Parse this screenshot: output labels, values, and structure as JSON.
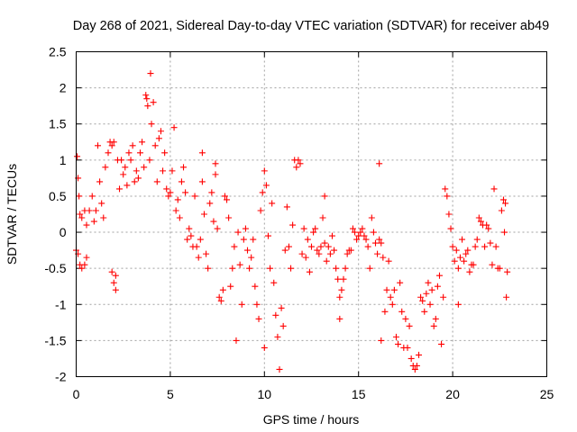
{
  "chart_data": {
    "type": "scatter",
    "title": "Day 268 of 2021, Sidereal Day-to-day VTEC variation (SDTVAR) for receiver ab49",
    "xlabel": "GPS time / hours",
    "ylabel": "SDTVAR / TECUs",
    "xlim": [
      0,
      25
    ],
    "ylim": [
      -2,
      2.5
    ],
    "xticks": [
      0,
      5,
      10,
      15,
      20,
      25
    ],
    "xtick_labels": [
      "0",
      "5",
      "10",
      "15",
      "20",
      "25"
    ],
    "yticks": [
      2.5,
      2,
      1.5,
      1,
      0.5,
      0,
      -0.5,
      -1,
      -1.5,
      -2
    ],
    "ytick_labels": [
      "2.5",
      "2",
      "1.5",
      "1",
      "0.5",
      "0",
      "-0.5",
      "-1",
      "-1.5",
      "-2"
    ],
    "grid": true,
    "marker": "+",
    "series": [
      {
        "name": "SDTVAR",
        "color": "#ff0000",
        "points": [
          [
            0.0,
            -0.25
          ],
          [
            0.05,
            1.05
          ],
          [
            0.1,
            0.75
          ],
          [
            0.15,
            0.5
          ],
          [
            0.2,
            0.25
          ],
          [
            0.1,
            -0.3
          ],
          [
            0.2,
            -0.45
          ],
          [
            0.3,
            -0.5
          ],
          [
            0.45,
            -0.45
          ],
          [
            0.55,
            -0.35
          ],
          [
            0.3,
            0.2
          ],
          [
            0.45,
            0.3
          ],
          [
            0.55,
            0.1
          ],
          [
            0.7,
            0.3
          ],
          [
            0.85,
            0.5
          ],
          [
            0.95,
            0.15
          ],
          [
            1.05,
            0.3
          ],
          [
            1.15,
            1.2
          ],
          [
            1.25,
            0.7
          ],
          [
            1.35,
            0.4
          ],
          [
            1.45,
            0.2
          ],
          [
            1.55,
            0.9
          ],
          [
            1.7,
            1.1
          ],
          [
            1.8,
            1.25
          ],
          [
            1.9,
            1.2
          ],
          [
            2.0,
            1.25
          ],
          [
            1.9,
            -0.55
          ],
          [
            2.0,
            -0.7
          ],
          [
            2.1,
            -0.6
          ],
          [
            2.1,
            -0.8
          ],
          [
            2.2,
            1.0
          ],
          [
            2.3,
            0.6
          ],
          [
            2.4,
            1.0
          ],
          [
            2.5,
            0.8
          ],
          [
            2.6,
            0.9
          ],
          [
            2.7,
            0.65
          ],
          [
            2.8,
            1.1
          ],
          [
            2.9,
            1.0
          ],
          [
            3.0,
            1.2
          ],
          [
            3.1,
            0.7
          ],
          [
            3.2,
            0.85
          ],
          [
            3.3,
            0.75
          ],
          [
            3.4,
            1.1
          ],
          [
            3.5,
            1.25
          ],
          [
            3.6,
            0.9
          ],
          [
            3.7,
            1.9
          ],
          [
            3.75,
            1.85
          ],
          [
            3.8,
            1.75
          ],
          [
            3.9,
            1.0
          ],
          [
            4.0,
            1.5
          ],
          [
            3.95,
            2.2
          ],
          [
            4.1,
            1.8
          ],
          [
            4.2,
            1.2
          ],
          [
            4.3,
            0.7
          ],
          [
            4.4,
            1.3
          ],
          [
            4.5,
            1.4
          ],
          [
            4.6,
            0.85
          ],
          [
            4.7,
            1.1
          ],
          [
            4.8,
            0.6
          ],
          [
            4.9,
            0.5
          ],
          [
            5.0,
            0.55
          ],
          [
            5.1,
            0.85
          ],
          [
            5.2,
            1.45
          ],
          [
            5.3,
            0.3
          ],
          [
            5.4,
            0.45
          ],
          [
            5.5,
            0.2
          ],
          [
            5.6,
            0.7
          ],
          [
            5.7,
            0.9
          ],
          [
            5.8,
            0.55
          ],
          [
            5.9,
            -0.1
          ],
          [
            6.0,
            0.05
          ],
          [
            6.1,
            -0.05
          ],
          [
            6.2,
            -0.2
          ],
          [
            6.3,
            0.5
          ],
          [
            6.4,
            -0.2
          ],
          [
            6.5,
            -0.35
          ],
          [
            6.6,
            -0.1
          ],
          [
            6.7,
            0.7
          ],
          [
            6.8,
            0.25
          ],
          [
            6.9,
            -0.3
          ],
          [
            7.0,
            -0.5
          ],
          [
            7.1,
            0.4
          ],
          [
            7.2,
            0.55
          ],
          [
            7.3,
            0.15
          ],
          [
            7.4,
            0.8
          ],
          [
            7.5,
            0.05
          ],
          [
            7.6,
            -0.9
          ],
          [
            7.7,
            -0.95
          ],
          [
            7.8,
            -0.8
          ],
          [
            7.9,
            0.5
          ],
          [
            8.0,
            0.45
          ],
          [
            8.1,
            0.2
          ],
          [
            8.2,
            -0.75
          ],
          [
            8.3,
            -0.5
          ],
          [
            8.4,
            -0.2
          ],
          [
            8.5,
            -1.5
          ],
          [
            8.6,
            0.0
          ],
          [
            8.7,
            -0.45
          ],
          [
            8.8,
            -1.0
          ],
          [
            8.9,
            -0.1
          ],
          [
            9.0,
            0.05
          ],
          [
            9.1,
            -0.25
          ],
          [
            9.2,
            -0.5
          ],
          [
            9.3,
            -0.35
          ],
          [
            9.4,
            -0.1
          ],
          [
            9.5,
            -0.75
          ],
          [
            9.6,
            -1.0
          ],
          [
            9.7,
            -1.2
          ],
          [
            9.8,
            0.3
          ],
          [
            9.9,
            0.55
          ],
          [
            10.0,
            0.85
          ],
          [
            10.1,
            0.65
          ],
          [
            10.2,
            -0.05
          ],
          [
            10.3,
            -0.5
          ],
          [
            10.4,
            0.4
          ],
          [
            10.5,
            -0.7
          ],
          [
            10.6,
            -1.15
          ],
          [
            10.7,
            -1.45
          ],
          [
            10.8,
            -1.9
          ],
          [
            10.9,
            -1.05
          ],
          [
            11.0,
            -1.3
          ],
          [
            11.1,
            -0.25
          ],
          [
            11.2,
            0.35
          ],
          [
            11.3,
            -0.2
          ],
          [
            11.4,
            -0.5
          ],
          [
            11.5,
            0.1
          ],
          [
            11.6,
            1.0
          ],
          [
            11.7,
            0.9
          ],
          [
            11.8,
            1.0
          ],
          [
            11.9,
            0.95
          ],
          [
            12.0,
            -0.3
          ],
          [
            12.1,
            0.05
          ],
          [
            12.2,
            -0.35
          ],
          [
            12.3,
            -0.1
          ],
          [
            12.4,
            -0.55
          ],
          [
            12.5,
            -0.2
          ],
          [
            12.6,
            0.0
          ],
          [
            12.7,
            0.05
          ],
          [
            12.8,
            -0.25
          ],
          [
            12.9,
            -0.3
          ],
          [
            13.0,
            -0.2
          ],
          [
            13.1,
            0.2
          ],
          [
            13.2,
            -0.15
          ],
          [
            13.3,
            -0.4
          ],
          [
            13.4,
            -0.2
          ],
          [
            13.5,
            -0.3
          ],
          [
            13.6,
            -0.05
          ],
          [
            13.7,
            -0.25
          ],
          [
            13.8,
            -0.5
          ],
          [
            13.9,
            -0.65
          ],
          [
            14.0,
            -0.9
          ],
          [
            14.1,
            -0.8
          ],
          [
            14.2,
            -0.65
          ],
          [
            14.3,
            -0.5
          ],
          [
            14.4,
            -0.3
          ],
          [
            14.5,
            -0.25
          ],
          [
            14.6,
            -0.25
          ],
          [
            14.7,
            0.05
          ],
          [
            14.8,
            0.0
          ],
          [
            14.9,
            -0.1
          ],
          [
            15.0,
            -0.05
          ],
          [
            15.1,
            0.0
          ],
          [
            15.2,
            0.05
          ],
          [
            15.3,
            -0.05
          ],
          [
            15.4,
            -0.1
          ],
          [
            15.5,
            -0.2
          ],
          [
            15.6,
            -0.5
          ],
          [
            15.7,
            0.2
          ],
          [
            15.8,
            0.0
          ],
          [
            15.9,
            -0.15
          ],
          [
            16.0,
            -0.3
          ],
          [
            16.1,
            -0.1
          ],
          [
            16.2,
            -0.15
          ],
          [
            16.3,
            -0.35
          ],
          [
            16.2,
            -1.5
          ],
          [
            16.4,
            -1.1
          ],
          [
            16.5,
            -0.8
          ],
          [
            16.6,
            -0.4
          ],
          [
            16.7,
            -0.9
          ],
          [
            16.8,
            -1.0
          ],
          [
            16.9,
            -0.8
          ],
          [
            17.0,
            -1.45
          ],
          [
            17.1,
            -1.55
          ],
          [
            17.2,
            -0.7
          ],
          [
            17.3,
            -1.1
          ],
          [
            17.4,
            -1.6
          ],
          [
            17.5,
            -1.2
          ],
          [
            17.6,
            -1.6
          ],
          [
            17.7,
            -1.3
          ],
          [
            17.8,
            -1.75
          ],
          [
            17.9,
            -1.85
          ],
          [
            18.0,
            -1.9
          ],
          [
            18.1,
            -1.85
          ],
          [
            18.2,
            -1.7
          ],
          [
            18.3,
            -0.9
          ],
          [
            18.4,
            -0.95
          ],
          [
            18.5,
            -1.1
          ],
          [
            18.6,
            -0.85
          ],
          [
            18.7,
            -0.7
          ],
          [
            18.8,
            -1.0
          ],
          [
            18.9,
            -0.8
          ],
          [
            19.0,
            -1.3
          ],
          [
            19.1,
            -1.2
          ],
          [
            19.2,
            -0.75
          ],
          [
            19.3,
            -0.6
          ],
          [
            19.4,
            -1.55
          ],
          [
            19.5,
            -0.9
          ],
          [
            19.6,
            0.6
          ],
          [
            19.7,
            0.5
          ],
          [
            19.8,
            0.25
          ],
          [
            19.9,
            0.05
          ],
          [
            20.0,
            -0.2
          ],
          [
            20.1,
            -0.4
          ],
          [
            20.2,
            -0.25
          ],
          [
            20.3,
            -0.5
          ],
          [
            20.4,
            -0.35
          ],
          [
            20.5,
            -0.1
          ],
          [
            20.6,
            -0.4
          ],
          [
            20.7,
            -0.3
          ],
          [
            20.8,
            -0.25
          ],
          [
            20.9,
            -0.55
          ],
          [
            21.0,
            -0.45
          ],
          [
            21.1,
            -0.45
          ],
          [
            21.2,
            -0.2
          ],
          [
            21.3,
            -0.1
          ],
          [
            21.4,
            0.2
          ],
          [
            21.5,
            0.15
          ],
          [
            21.6,
            0.1
          ],
          [
            21.7,
            -0.2
          ],
          [
            21.8,
            0.1
          ],
          [
            21.9,
            0.05
          ],
          [
            22.0,
            -0.15
          ],
          [
            22.1,
            -0.45
          ],
          [
            22.2,
            0.6
          ],
          [
            22.3,
            -0.2
          ],
          [
            22.4,
            -0.5
          ],
          [
            22.5,
            -0.5
          ],
          [
            22.6,
            0.3
          ],
          [
            22.7,
            0.45
          ],
          [
            22.8,
            0.4
          ],
          [
            22.9,
            -0.55
          ],
          [
            22.85,
            -0.9
          ],
          [
            22.75,
            0.0
          ],
          [
            13.2,
            0.5
          ],
          [
            16.1,
            0.95
          ],
          [
            6.7,
            1.1
          ],
          [
            7.4,
            0.95
          ],
          [
            10.0,
            -1.6
          ],
          [
            14.0,
            -1.2
          ],
          [
            20.3,
            -1.0
          ]
        ]
      }
    ]
  }
}
